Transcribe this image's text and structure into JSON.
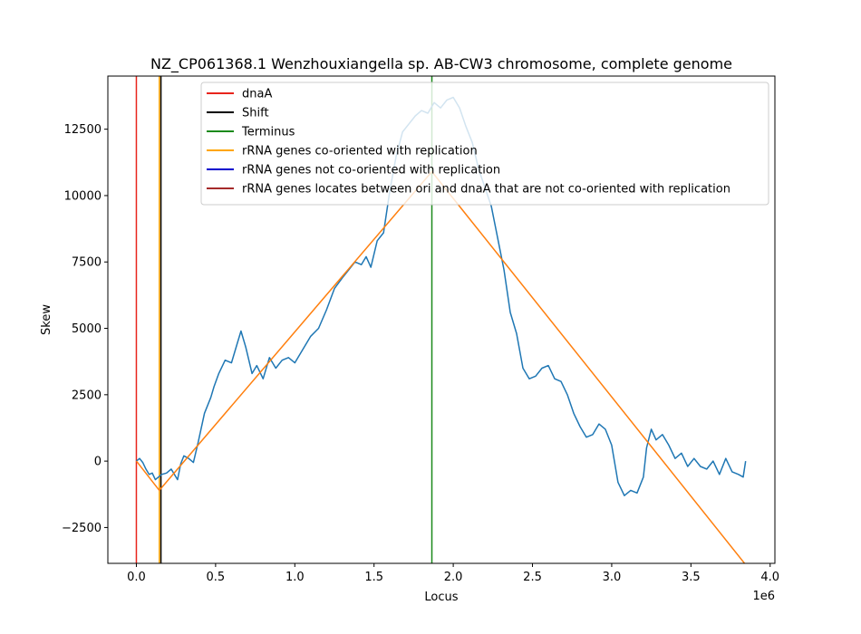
{
  "chart_data": {
    "type": "line",
    "title": "NZ_CP061368.1 Wenzhouxiangella sp. AB-CW3 chromosome, complete genome",
    "xlabel": "Locus",
    "ylabel": "Skew",
    "x_offset_label": "1e6",
    "xlim": [
      -180000,
      4030000
    ],
    "ylim": [
      -3850,
      14500
    ],
    "x_ticks": [
      0,
      500000,
      1000000,
      1500000,
      2000000,
      2500000,
      3000000,
      3500000,
      4000000
    ],
    "x_tick_labels": [
      "0.0",
      "0.5",
      "1.0",
      "1.5",
      "2.0",
      "2.5",
      "3.0",
      "3.5",
      "4.0"
    ],
    "y_ticks": [
      -2500,
      0,
      2500,
      5000,
      7500,
      10000,
      12500
    ],
    "y_tick_labels": [
      "−2500",
      "0",
      "2500",
      "5000",
      "7500",
      "10000",
      "12500"
    ],
    "legend_position": "upper-right",
    "legend": [
      {
        "label": "dnaA",
        "color": "#e8241c"
      },
      {
        "label": "Shift",
        "color": "#000000"
      },
      {
        "label": "Terminus",
        "color": "#1b8a1b"
      },
      {
        "label": "rRNA genes co-oriented with replication",
        "color": "#ffa500"
      },
      {
        "label": "rRNA genes not co-oriented with replication",
        "color": "#0000cd"
      },
      {
        "label": "rRNA genes locates between ori and dnaA that are not co-oriented with replication",
        "color": "#a52a2a"
      }
    ],
    "vertical_lines": [
      {
        "name": "dnaA",
        "x": 0,
        "color": "#e8241c"
      },
      {
        "name": "rRNA",
        "x": 145000,
        "color": "#ffa500"
      },
      {
        "name": "Shift",
        "x": 155000,
        "color": "#000000"
      },
      {
        "name": "Terminus",
        "x": 1865000,
        "color": "#1b8a1b"
      }
    ],
    "series": [
      {
        "color": "#1f77b4",
        "x": [
          0,
          20000,
          40000,
          60000,
          80000,
          100000,
          120000,
          140000,
          160000,
          190000,
          220000,
          260000,
          280000,
          300000,
          330000,
          360000,
          390000,
          430000,
          470000,
          490000,
          520000,
          560000,
          600000,
          630000,
          660000,
          690000,
          710000,
          730000,
          760000,
          800000,
          840000,
          880000,
          920000,
          960000,
          1000000,
          1050000,
          1100000,
          1150000,
          1200000,
          1250000,
          1300000,
          1340000,
          1380000,
          1420000,
          1450000,
          1480000,
          1520000,
          1560000,
          1600000,
          1640000,
          1680000,
          1720000,
          1760000,
          1800000,
          1840000,
          1880000,
          1920000,
          1960000,
          2000000,
          2040000,
          2080000,
          2120000,
          2160000,
          2200000,
          2240000,
          2280000,
          2320000,
          2360000,
          2400000,
          2440000,
          2480000,
          2520000,
          2560000,
          2600000,
          2640000,
          2680000,
          2720000,
          2760000,
          2800000,
          2840000,
          2880000,
          2920000,
          2960000,
          3000000,
          3040000,
          3080000,
          3120000,
          3160000,
          3200000,
          3220000,
          3250000,
          3280000,
          3320000,
          3360000,
          3400000,
          3440000,
          3480000,
          3520000,
          3560000,
          3600000,
          3640000,
          3680000,
          3720000,
          3760000,
          3800000,
          3830000,
          3845000
        ],
        "y": [
          0,
          100,
          -50,
          -300,
          -500,
          -450,
          -700,
          -600,
          -500,
          -450,
          -300,
          -700,
          -100,
          200,
          100,
          -50,
          700,
          1800,
          2400,
          2800,
          3300,
          3800,
          3700,
          4300,
          4900,
          4300,
          3800,
          3300,
          3600,
          3100,
          3900,
          3500,
          3800,
          3900,
          3700,
          4200,
          4700,
          5000,
          5700,
          6500,
          6900,
          7200,
          7500,
          7400,
          7700,
          7300,
          8300,
          8600,
          10200,
          11500,
          12400,
          12700,
          13000,
          13200,
          13100,
          13500,
          13300,
          13600,
          13700,
          13300,
          12600,
          12000,
          11000,
          10300,
          9600,
          8400,
          7200,
          5600,
          4800,
          3500,
          3100,
          3200,
          3500,
          3600,
          3100,
          3000,
          2500,
          1800,
          1300,
          900,
          1000,
          1400,
          1200,
          600,
          -800,
          -1300,
          -1100,
          -1200,
          -600,
          500,
          1200,
          800,
          1000,
          600,
          100,
          300,
          -200,
          100,
          -200,
          -300,
          0,
          -500,
          100,
          -400,
          -500,
          -600,
          0
        ],
        "line_width": 1.5
      },
      {
        "color": "#ff7f0e",
        "x": [
          0,
          145000,
          1865000,
          3845000
        ],
        "y": [
          0,
          -1100,
          10900,
          -3900
        ],
        "line_width": 1.5
      }
    ]
  }
}
